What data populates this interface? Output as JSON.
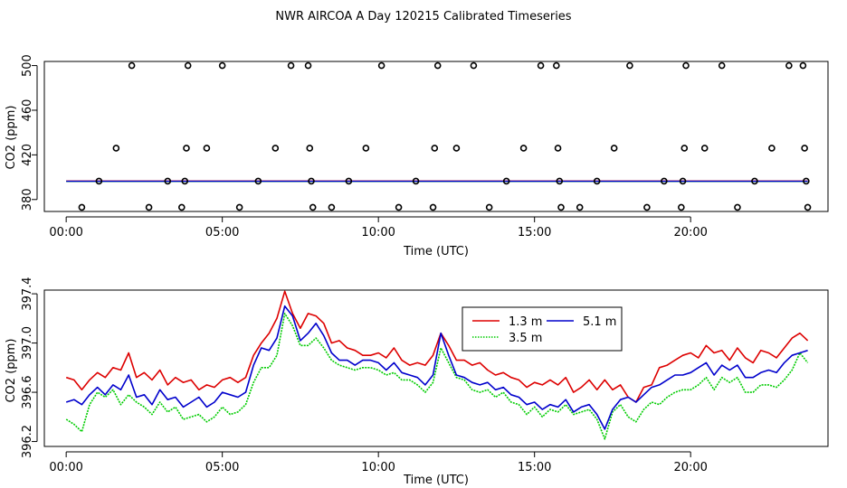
{
  "title": "NWR AIRCOA A  Day 120215  Calibrated Timeseries",
  "colors": {
    "red": "#dd0000",
    "green": "#00cc00",
    "blue": "#0000cc",
    "marker": "#000000"
  },
  "chart_data": [
    {
      "type": "scatter",
      "title": "",
      "xlabel": "Time (UTC)",
      "ylabel": "CO2 (ppm)",
      "xlim": [
        -0.7,
        24.4
      ],
      "ylim": [
        369.3,
        503.7
      ],
      "x_ticks": [
        0,
        5,
        10,
        15,
        20
      ],
      "x_tick_labels": [
        "00:00",
        "05:00",
        "10:00",
        "15:00",
        "20:00"
      ],
      "y_ticks": [
        380,
        420,
        460,
        500
      ],
      "y_tick_labels": [
        "380",
        "420",
        "460",
        "500"
      ],
      "grid": false,
      "series": [
        {
          "name": "calibration markers",
          "marker": "open-circle",
          "points": [
            [
              0.5,
              373
            ],
            [
              1.05,
              396.5
            ],
            [
              1.6,
              426
            ],
            [
              2.1,
              500
            ],
            [
              2.65,
              373
            ],
            [
              3.25,
              396.5
            ],
            [
              3.7,
              373
            ],
            [
              3.8,
              396.5
            ],
            [
              3.85,
              426
            ],
            [
              3.9,
              500
            ],
            [
              4.5,
              426
            ],
            [
              5.0,
              500
            ],
            [
              5.55,
              373
            ],
            [
              6.15,
              396.5
            ],
            [
              6.7,
              426
            ],
            [
              7.2,
              500
            ],
            [
              7.75,
              500
            ],
            [
              7.8,
              426
            ],
            [
              7.85,
              396.5
            ],
            [
              7.9,
              373
            ],
            [
              8.5,
              373
            ],
            [
              9.05,
              396.5
            ],
            [
              9.6,
              426
            ],
            [
              10.1,
              500
            ],
            [
              10.65,
              373
            ],
            [
              11.2,
              396.5
            ],
            [
              11.75,
              373
            ],
            [
              11.8,
              426
            ],
            [
              11.9,
              500
            ],
            [
              12.5,
              426
            ],
            [
              13.05,
              500
            ],
            [
              13.55,
              373
            ],
            [
              14.1,
              396.5
            ],
            [
              14.65,
              426
            ],
            [
              15.2,
              500
            ],
            [
              15.7,
              500
            ],
            [
              15.75,
              426
            ],
            [
              15.8,
              396.5
            ],
            [
              15.85,
              373
            ],
            [
              16.45,
              373
            ],
            [
              17.0,
              396.5
            ],
            [
              17.55,
              426
            ],
            [
              18.05,
              500
            ],
            [
              18.6,
              373
            ],
            [
              19.15,
              396.5
            ],
            [
              19.7,
              373
            ],
            [
              19.75,
              396.5
            ],
            [
              19.8,
              426
            ],
            [
              19.85,
              500
            ],
            [
              20.45,
              426
            ],
            [
              21.0,
              500
            ],
            [
              21.5,
              373
            ],
            [
              22.05,
              396.5
            ],
            [
              22.6,
              426
            ],
            [
              23.15,
              500
            ],
            [
              23.6,
              500
            ],
            [
              23.65,
              426
            ],
            [
              23.7,
              396.5
            ],
            [
              23.75,
              373
            ]
          ]
        }
      ],
      "lines": [
        {
          "name": "1.3 m",
          "color": "#dd0000",
          "y": 396.6
        },
        {
          "name": "3.5 m",
          "color": "#00cc00",
          "y": 396.3
        },
        {
          "name": "5.1 m",
          "color": "#0000cc",
          "y": 396.4
        }
      ]
    },
    {
      "type": "line",
      "title": "",
      "xlabel": "Time (UTC)",
      "ylabel": "CO2 (ppm)",
      "xlim": [
        -0.7,
        24.4
      ],
      "ylim": [
        396.16,
        397.43
      ],
      "x_ticks": [
        0,
        5,
        10,
        15,
        20
      ],
      "x_tick_labels": [
        "00:00",
        "05:00",
        "10:00",
        "15:00",
        "20:00"
      ],
      "y_ticks": [
        396.2,
        396.6,
        397.0,
        397.4
      ],
      "y_tick_labels": [
        "396.2",
        "396.6",
        "397.0",
        "397.4"
      ],
      "grid": false,
      "legend": {
        "position": "top-center",
        "layout": "two-column"
      },
      "x": [
        0,
        0.25,
        0.5,
        0.75,
        1,
        1.25,
        1.5,
        1.75,
        2,
        2.25,
        2.5,
        2.75,
        3,
        3.25,
        3.5,
        3.75,
        4,
        4.25,
        4.5,
        4.75,
        5,
        5.25,
        5.5,
        5.75,
        6,
        6.25,
        6.5,
        6.75,
        7,
        7.25,
        7.5,
        7.75,
        8,
        8.25,
        8.5,
        8.75,
        9,
        9.25,
        9.5,
        9.75,
        10,
        10.25,
        10.5,
        10.75,
        11,
        11.25,
        11.5,
        11.75,
        12,
        12.25,
        12.5,
        12.75,
        13,
        13.25,
        13.5,
        13.75,
        14,
        14.25,
        14.5,
        14.75,
        15,
        15.25,
        15.5,
        15.75,
        16,
        16.25,
        16.5,
        16.75,
        17,
        17.25,
        17.5,
        17.75,
        18,
        18.25,
        18.5,
        18.75,
        19,
        19.25,
        19.5,
        19.75,
        20,
        20.25,
        20.5,
        20.75,
        21,
        21.25,
        21.5,
        21.75,
        22,
        22.25,
        22.5,
        22.75,
        23,
        23.25,
        23.5,
        23.75
      ],
      "series": [
        {
          "name": "1.3 m",
          "color": "#dd0000",
          "values": [
            396.72,
            396.7,
            396.62,
            396.7,
            396.76,
            396.72,
            396.8,
            396.78,
            396.92,
            396.72,
            396.76,
            396.7,
            396.78,
            396.66,
            396.72,
            396.68,
            396.7,
            396.62,
            396.66,
            396.64,
            396.7,
            396.72,
            396.68,
            396.72,
            396.9,
            397.0,
            397.08,
            397.2,
            397.42,
            397.24,
            397.12,
            397.24,
            397.22,
            397.16,
            397.0,
            397.02,
            396.96,
            396.94,
            396.9,
            396.9,
            396.92,
            396.88,
            396.96,
            396.86,
            396.82,
            396.84,
            396.82,
            396.9,
            397.08,
            396.98,
            396.86,
            396.86,
            396.82,
            396.84,
            396.78,
            396.74,
            396.76,
            396.72,
            396.7,
            396.64,
            396.68,
            396.66,
            396.7,
            396.66,
            396.72,
            396.6,
            396.64,
            396.7,
            396.62,
            396.7,
            396.62,
            396.66,
            396.56,
            396.52,
            396.64,
            396.66,
            396.8,
            396.82,
            396.86,
            396.9,
            396.92,
            396.88,
            396.98,
            396.92,
            396.94,
            396.86,
            396.96,
            396.88,
            396.84,
            396.94,
            396.92,
            396.88,
            396.96,
            397.04,
            397.08,
            397.02
          ],
          "line_style": "solid"
        },
        {
          "name": "3.5 m",
          "color": "#00cc00",
          "values": [
            396.38,
            396.34,
            396.28,
            396.5,
            396.6,
            396.56,
            396.62,
            396.5,
            396.58,
            396.52,
            396.48,
            396.42,
            396.52,
            396.44,
            396.48,
            396.38,
            396.4,
            396.42,
            396.36,
            396.4,
            396.48,
            396.42,
            396.44,
            396.5,
            396.68,
            396.8,
            396.8,
            396.9,
            397.24,
            397.14,
            396.98,
            396.98,
            397.04,
            396.96,
            396.86,
            396.82,
            396.8,
            396.78,
            396.8,
            396.8,
            396.78,
            396.74,
            396.76,
            396.7,
            396.7,
            396.66,
            396.6,
            396.68,
            396.96,
            396.84,
            396.72,
            396.7,
            396.62,
            396.6,
            396.62,
            396.56,
            396.6,
            396.52,
            396.5,
            396.42,
            396.48,
            396.4,
            396.46,
            396.44,
            396.5,
            396.42,
            396.44,
            396.46,
            396.38,
            396.22,
            396.44,
            396.5,
            396.4,
            396.36,
            396.46,
            396.52,
            396.5,
            396.56,
            396.6,
            396.62,
            396.62,
            396.66,
            396.72,
            396.62,
            396.72,
            396.68,
            396.72,
            396.6,
            396.6,
            396.66,
            396.66,
            396.64,
            396.7,
            396.78,
            396.92,
            396.84
          ],
          "line_style": "dotted"
        },
        {
          "name": "5.1 m",
          "color": "#0000cc",
          "values": [
            396.52,
            396.54,
            396.5,
            396.58,
            396.64,
            396.58,
            396.66,
            396.62,
            396.74,
            396.56,
            396.58,
            396.5,
            396.62,
            396.54,
            396.56,
            396.48,
            396.52,
            396.56,
            396.48,
            396.52,
            396.6,
            396.58,
            396.56,
            396.6,
            396.82,
            396.96,
            396.94,
            397.04,
            397.3,
            397.22,
            397.02,
            397.08,
            397.16,
            397.06,
            396.92,
            396.86,
            396.86,
            396.82,
            396.86,
            396.86,
            396.84,
            396.78,
            396.84,
            396.76,
            396.74,
            396.72,
            396.66,
            396.74,
            397.08,
            396.9,
            396.74,
            396.72,
            396.68,
            396.66,
            396.68,
            396.62,
            396.64,
            396.58,
            396.56,
            396.5,
            396.52,
            396.46,
            396.5,
            396.48,
            396.54,
            396.44,
            396.48,
            396.5,
            396.42,
            396.3,
            396.46,
            396.54,
            396.56,
            396.52,
            396.58,
            396.64,
            396.66,
            396.7,
            396.74,
            396.74,
            396.76,
            396.8,
            396.84,
            396.74,
            396.82,
            396.78,
            396.82,
            396.72,
            396.72,
            396.76,
            396.78,
            396.76,
            396.84,
            396.9,
            396.92,
            396.94
          ],
          "line_style": "solid"
        }
      ]
    }
  ]
}
